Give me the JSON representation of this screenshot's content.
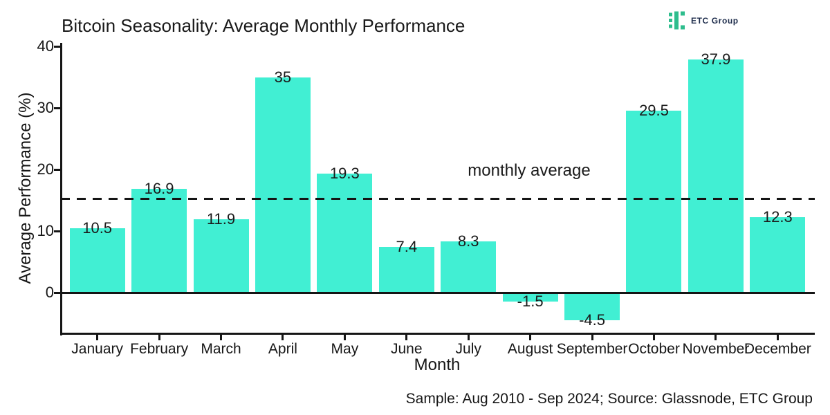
{
  "header": {
    "title": "Bitcoin Seasonality: Average Monthly Performance"
  },
  "logo": {
    "name": "ETC Group",
    "icon": "etc-group-logo-icon",
    "icon_color": "#2ebd8d",
    "text_color": "#1c2b4a"
  },
  "footer": {
    "source_note": "Sample: Aug 2010 - Sep 2024; Source: Glassnode, ETC Group"
  },
  "chart_data": {
    "type": "bar",
    "title": "Bitcoin Seasonality: Average Monthly Performance",
    "xlabel": "Month",
    "ylabel": "Average Performance (%)",
    "categories": [
      "January",
      "February",
      "March",
      "April",
      "May",
      "June",
      "July",
      "August",
      "September",
      "October",
      "November",
      "December"
    ],
    "values": [
      10.5,
      16.9,
      11.9,
      35,
      19.3,
      7.4,
      8.3,
      -1.5,
      -4.5,
      29.5,
      37.9,
      12.3
    ],
    "value_labels": [
      "10.5",
      "16.9",
      "11.9",
      "35",
      "19.3",
      "7.4",
      "8.3",
      "-1.5",
      "-4.5",
      "29.5",
      "37.9",
      "12.3"
    ],
    "yticks": [
      0,
      10,
      20,
      30,
      40
    ],
    "ylim": [
      -6.6,
      40.5
    ],
    "grid": false,
    "legend": "none",
    "bar_color": "#41efd3",
    "axis_color": "#151515",
    "annotation": {
      "label": "monthly average",
      "value": 15.25,
      "style": "dashed-line"
    }
  }
}
